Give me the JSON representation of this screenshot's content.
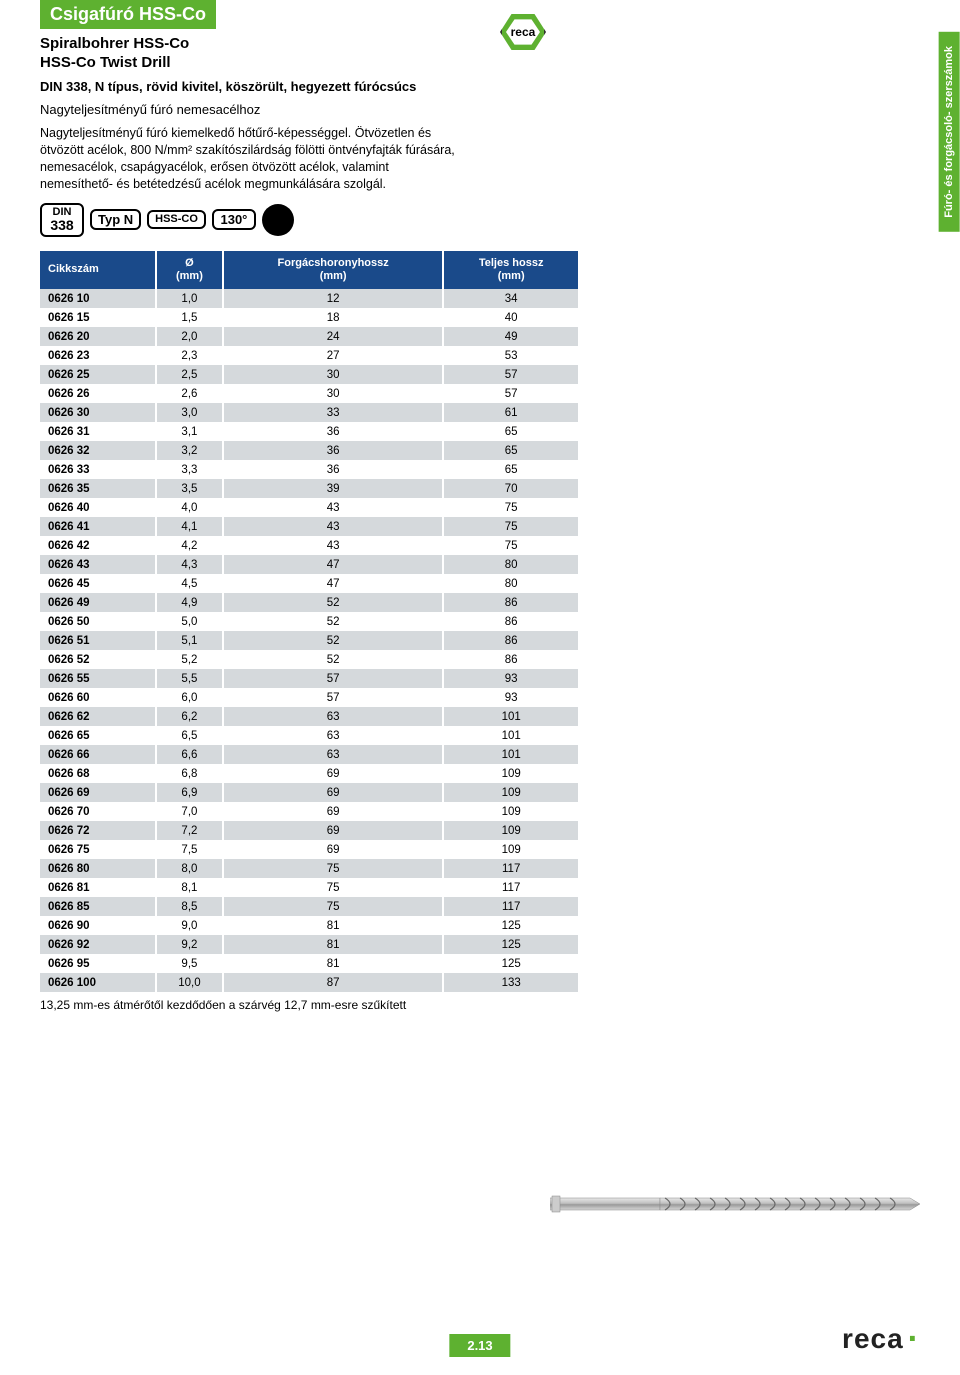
{
  "header": {
    "title": "Csigafúró HSS-Co",
    "subtitle1": "Spiralbohrer HSS-Co",
    "subtitle2": "HSS-Co Twist Drill",
    "desc_bold": "DIN 338, N típus, rövid kivitel, köszörült, hegyezett fúrócsúcs",
    "desc_line": "Nagyteljesítményű fúró nemesacélhoz",
    "body": "Nagyteljesítményű fúró kiemelkedő hőtűrő-képességgel. Ötvözetlen és ötvözött acélok, 800 N/mm² szakítószilárdság fölötti öntvényfajták fúrására, nemesacélok, csapágyacélok, erősen ötvözött acélok, valamint nemesíthető- és betétedzésű acélok megmunkálására szolgál."
  },
  "badges": {
    "b1_top": "DIN",
    "b1_bot": "338",
    "b2": "Typ N",
    "b3": "HSS-CO",
    "b4": "130°"
  },
  "side_tab": "Fúró- és forgácsoló-\nszerszámok",
  "reca_text": "reca",
  "table": {
    "columns": [
      "Cikkszám",
      "Ø\n(mm)",
      "Forgácshoronyhossz\n(mm)",
      "Teljes hossz\n(mm)"
    ],
    "rows": [
      [
        "0626 10",
        "1,0",
        "12",
        "34"
      ],
      [
        "0626 15",
        "1,5",
        "18",
        "40"
      ],
      [
        "0626 20",
        "2,0",
        "24",
        "49"
      ],
      [
        "0626 23",
        "2,3",
        "27",
        "53"
      ],
      [
        "0626 25",
        "2,5",
        "30",
        "57"
      ],
      [
        "0626 26",
        "2,6",
        "30",
        "57"
      ],
      [
        "0626 30",
        "3,0",
        "33",
        "61"
      ],
      [
        "0626 31",
        "3,1",
        "36",
        "65"
      ],
      [
        "0626 32",
        "3,2",
        "36",
        "65"
      ],
      [
        "0626 33",
        "3,3",
        "36",
        "65"
      ],
      [
        "0626 35",
        "3,5",
        "39",
        "70"
      ],
      [
        "0626 40",
        "4,0",
        "43",
        "75"
      ],
      [
        "0626 41",
        "4,1",
        "43",
        "75"
      ],
      [
        "0626 42",
        "4,2",
        "43",
        "75"
      ],
      [
        "0626 43",
        "4,3",
        "47",
        "80"
      ],
      [
        "0626 45",
        "4,5",
        "47",
        "80"
      ],
      [
        "0626 49",
        "4,9",
        "52",
        "86"
      ],
      [
        "0626 50",
        "5,0",
        "52",
        "86"
      ],
      [
        "0626 51",
        "5,1",
        "52",
        "86"
      ],
      [
        "0626 52",
        "5,2",
        "52",
        "86"
      ],
      [
        "0626 55",
        "5,5",
        "57",
        "93"
      ],
      [
        "0626 60",
        "6,0",
        "57",
        "93"
      ],
      [
        "0626 62",
        "6,2",
        "63",
        "101"
      ],
      [
        "0626 65",
        "6,5",
        "63",
        "101"
      ],
      [
        "0626 66",
        "6,6",
        "63",
        "101"
      ],
      [
        "0626 68",
        "6,8",
        "69",
        "109"
      ],
      [
        "0626 69",
        "6,9",
        "69",
        "109"
      ],
      [
        "0626 70",
        "7,0",
        "69",
        "109"
      ],
      [
        "0626 72",
        "7,2",
        "69",
        "109"
      ],
      [
        "0626 75",
        "7,5",
        "69",
        "109"
      ],
      [
        "0626 80",
        "8,0",
        "75",
        "117"
      ],
      [
        "0626 81",
        "8,1",
        "75",
        "117"
      ],
      [
        "0626 85",
        "8,5",
        "75",
        "117"
      ],
      [
        "0626 90",
        "9,0",
        "81",
        "125"
      ],
      [
        "0626 92",
        "9,2",
        "81",
        "125"
      ],
      [
        "0626 95",
        "9,5",
        "81",
        "125"
      ],
      [
        "0626 100",
        "10,0",
        "87",
        "133"
      ]
    ],
    "header_bg": "#1a4a8a",
    "row_even_bg": "#d5d9dc",
    "row_odd_bg": "#ffffff"
  },
  "footnote": "13,25 mm-es átmérőtől kezdődően a szárvég 12,7 mm-esre szűkített",
  "page_number": "2.13"
}
